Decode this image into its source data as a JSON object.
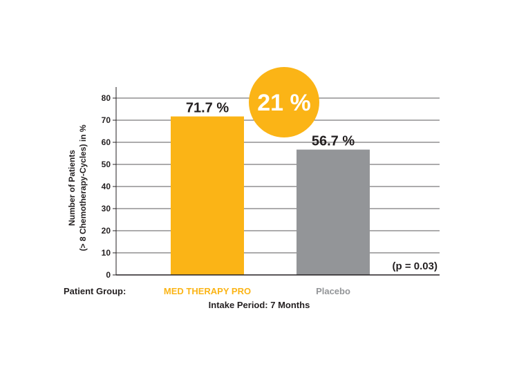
{
  "chart_data": {
    "type": "bar",
    "categories": [
      "MED THERAPY PRO",
      "Placebo"
    ],
    "values": [
      71.7,
      56.7
    ],
    "value_labels": [
      "71.7 %",
      "56.7 %"
    ],
    "bar_colors": [
      "#fbb416",
      "#939598"
    ],
    "ylabel_lines": [
      "Number of Patients",
      "(> 8 Chemotherapy-Cycles) in %"
    ],
    "yticks": [
      0,
      10,
      20,
      30,
      40,
      50,
      60,
      70,
      80
    ],
    "ylim": [
      0,
      85
    ],
    "grid": true,
    "group_label": "Patient Group:",
    "xlabel": "Intake Period: 7 Months",
    "badge": "21 %",
    "badge_color": "#fbb416",
    "annotation": "(p = 0.03)"
  }
}
